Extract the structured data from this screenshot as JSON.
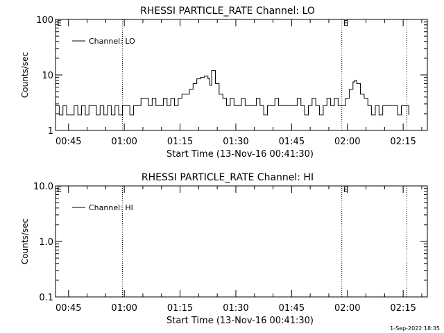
{
  "footer": {
    "timestamp": "1-Sep-2022 18:35"
  },
  "chart_data": [
    {
      "type": "line",
      "title": "RHESSI PARTICLE_RATE Channel: LO",
      "xlabel": "Start Time (13-Nov-16 00:41:30)",
      "ylabel": "Counts/sec",
      "yscale": "log",
      "ylim": [
        1,
        100
      ],
      "yticks": [
        {
          "value": 1,
          "label": "1"
        },
        {
          "value": 10,
          "label": "10"
        },
        {
          "value": 100,
          "label": "100"
        }
      ],
      "xlim": [
        "00:41:30",
        "02:21:30"
      ],
      "xticks": [
        "00:45",
        "01:00",
        "01:15",
        "01:30",
        "01:45",
        "02:00",
        "02:15"
      ],
      "grid": false,
      "legend": {
        "position": "top-left",
        "entries": [
          "Channel: LO"
        ]
      },
      "markers": [
        {
          "time": "00:41:30",
          "label": "E"
        },
        {
          "time": "00:59:30",
          "label": ""
        },
        {
          "time": "01:58:30",
          "label": "E"
        },
        {
          "time": "02:16:00",
          "label": ""
        }
      ],
      "series": [
        {
          "name": "Channel: LO",
          "x": [
            "00:41:30",
            "00:42:30",
            "00:43:30",
            "00:44:30",
            "00:45:30",
            "00:46:30",
            "00:47:30",
            "00:48:30",
            "00:49:30",
            "00:50:30",
            "00:51:30",
            "00:52:30",
            "00:53:30",
            "00:54:30",
            "00:55:30",
            "00:56:30",
            "00:57:30",
            "00:58:30",
            "00:59:30",
            "01:00:30",
            "01:01:30",
            "01:02:30",
            "01:03:30",
            "01:04:30",
            "01:05:30",
            "01:06:30",
            "01:07:30",
            "01:08:30",
            "01:09:30",
            "01:10:30",
            "01:11:30",
            "01:12:30",
            "01:13:30",
            "01:14:30",
            "01:15:30",
            "01:16:30",
            "01:17:30",
            "01:18:30",
            "01:19:30",
            "01:20:30",
            "01:21:30",
            "01:22:30",
            "01:23:00",
            "01:23:30",
            "01:24:30",
            "01:25:30",
            "01:26:30",
            "01:27:30",
            "01:28:30",
            "01:29:30",
            "01:30:30",
            "01:31:30",
            "01:32:30",
            "01:33:30",
            "01:34:30",
            "01:35:30",
            "01:36:30",
            "01:37:30",
            "01:38:30",
            "01:39:30",
            "01:40:30",
            "01:41:30",
            "01:42:30",
            "01:43:30",
            "01:44:30",
            "01:45:30",
            "01:46:30",
            "01:47:30",
            "01:48:30",
            "01:49:30",
            "01:50:30",
            "01:51:30",
            "01:52:30",
            "01:53:30",
            "01:54:30",
            "01:55:30",
            "01:56:30",
            "01:57:30",
            "01:58:30",
            "01:59:30",
            "02:00:30",
            "02:01:30",
            "02:02:00",
            "02:02:30",
            "02:03:30",
            "02:04:30",
            "02:05:30",
            "02:06:30",
            "02:07:30",
            "02:08:30",
            "02:09:30",
            "02:10:30",
            "02:11:30",
            "02:12:30",
            "02:13:30",
            "02:14:30",
            "02:15:30",
            "02:16:30"
          ],
          "values": [
            2.8,
            1.9,
            2.8,
            1.9,
            1.9,
            2.8,
            1.9,
            2.8,
            1.9,
            2.8,
            2.8,
            1.9,
            2.8,
            1.9,
            2.8,
            1.9,
            2.8,
            1.9,
            2.8,
            2.8,
            1.9,
            2.8,
            2.8,
            3.8,
            3.8,
            2.8,
            3.8,
            2.8,
            2.8,
            3.8,
            2.8,
            3.8,
            2.8,
            3.8,
            4.5,
            4.5,
            5.5,
            7.0,
            8.5,
            9.0,
            9.5,
            8.5,
            6.5,
            12.0,
            7.0,
            4.5,
            3.8,
            2.8,
            3.8,
            2.8,
            2.8,
            3.8,
            2.8,
            2.8,
            2.8,
            3.8,
            2.8,
            1.9,
            2.8,
            2.8,
            3.8,
            2.8,
            2.8,
            2.8,
            2.8,
            2.8,
            3.8,
            2.8,
            1.9,
            2.8,
            3.8,
            2.8,
            1.9,
            2.8,
            3.8,
            2.8,
            3.8,
            2.8,
            2.8,
            3.8,
            5.5,
            7.5,
            8.0,
            7.0,
            4.5,
            3.8,
            2.8,
            1.9,
            2.8,
            1.9,
            2.8,
            2.8,
            2.8,
            2.8,
            1.9,
            2.8,
            2.8,
            1.9
          ]
        }
      ]
    },
    {
      "type": "line",
      "title": "RHESSI PARTICLE_RATE Channel: HI",
      "xlabel": "Start Time (13-Nov-16 00:41:30)",
      "ylabel": "Counts/sec",
      "yscale": "log",
      "ylim": [
        0.1,
        10
      ],
      "yticks": [
        {
          "value": 0.1,
          "label": "0.1"
        },
        {
          "value": 1,
          "label": "1.0"
        },
        {
          "value": 10,
          "label": "10.0"
        }
      ],
      "xlim": [
        "00:41:30",
        "02:21:30"
      ],
      "xticks": [
        "00:45",
        "01:00",
        "01:15",
        "01:30",
        "01:45",
        "02:00",
        "02:15"
      ],
      "grid": false,
      "legend": {
        "position": "top-left",
        "entries": [
          "Channel: HI"
        ]
      },
      "markers": [
        {
          "time": "00:41:30",
          "label": "E"
        },
        {
          "time": "00:59:30",
          "label": ""
        },
        {
          "time": "01:58:30",
          "label": "E"
        },
        {
          "time": "02:16:00",
          "label": ""
        }
      ],
      "series": [
        {
          "name": "Channel: HI",
          "x": [],
          "values": []
        }
      ]
    }
  ]
}
